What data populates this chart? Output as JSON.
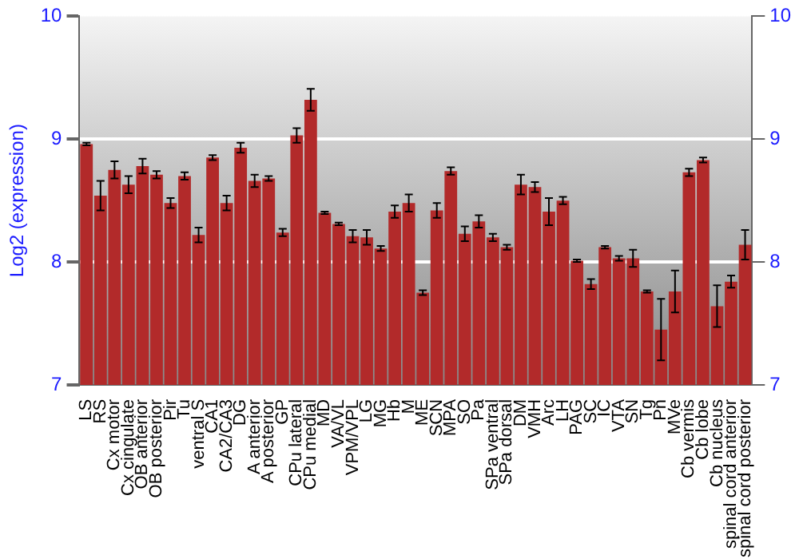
{
  "chart_data": {
    "type": "bar",
    "ylabel": "Log2 (expression)",
    "categories": [
      "LS",
      "RS",
      "Cx motor",
      "Cx cingulate",
      "OB anterior",
      "OB posterior",
      "Pir",
      "Tu",
      "ventral S",
      "CA1",
      "CA2/CA3",
      "DG",
      "A anterior",
      "A posterior",
      "GP",
      "CPu lateral",
      "CPu medial",
      "MD",
      "VA/VL",
      "VPM/VPL",
      "LG",
      "MG",
      "Hb",
      "M",
      "ME",
      "SCN",
      "MPA",
      "SO",
      "Pa",
      "SPa ventral",
      "SPa dorsal",
      "DM",
      "VMH",
      "Arc",
      "LH",
      "PAG",
      "SC",
      "IC",
      "VTA",
      "SN",
      "Tg",
      "Pn",
      "MVe",
      "Cb vermis",
      "Cb lobe",
      "Cb nucleus",
      "spinal cord anterior",
      "spinal cord posterior"
    ],
    "values": [
      8.96,
      8.54,
      8.75,
      8.63,
      8.78,
      8.71,
      8.48,
      8.7,
      8.22,
      8.85,
      8.48,
      8.93,
      8.66,
      8.68,
      8.24,
      9.03,
      9.32,
      8.4,
      8.31,
      8.21,
      8.2,
      8.11,
      8.41,
      8.48,
      7.75,
      8.42,
      8.74,
      8.23,
      8.33,
      8.2,
      8.12,
      8.63,
      8.61,
      8.41,
      8.5,
      8.01,
      7.82,
      8.12,
      8.03,
      8.03,
      7.76,
      7.45,
      7.76,
      8.73,
      8.83,
      7.64,
      7.84,
      8.14
    ],
    "errors": [
      0.01,
      0.12,
      0.07,
      0.07,
      0.06,
      0.03,
      0.04,
      0.03,
      0.06,
      0.02,
      0.06,
      0.04,
      0.05,
      0.02,
      0.03,
      0.06,
      0.09,
      0.01,
      0.01,
      0.05,
      0.06,
      0.02,
      0.05,
      0.07,
      0.02,
      0.06,
      0.03,
      0.06,
      0.05,
      0.03,
      0.02,
      0.08,
      0.04,
      0.11,
      0.03,
      0.01,
      0.04,
      0.01,
      0.02,
      0.07,
      0.01,
      0.25,
      0.17,
      0.03,
      0.02,
      0.17,
      0.05,
      0.12
    ],
    "color": "#b22a2a",
    "ylim": [
      7,
      10
    ],
    "yticks": [
      7,
      8,
      9,
      10
    ],
    "y2lim": [
      7,
      10
    ],
    "y2ticks": [
      7,
      8,
      9,
      10
    ],
    "grid": "y",
    "legend": false
  }
}
